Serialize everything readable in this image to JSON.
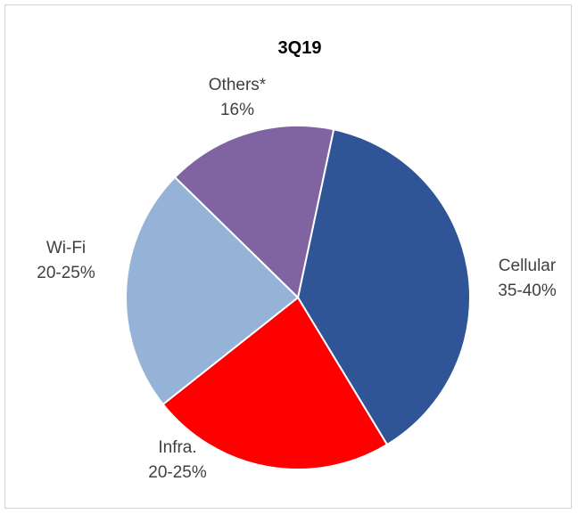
{
  "chart_data": {
    "type": "pie",
    "title": "3Q19",
    "slices": [
      {
        "label": "Cellular",
        "value_text": "35-40%",
        "value": 38,
        "color": "#2F5597"
      },
      {
        "label": "Infra.",
        "value_text": "20-25%",
        "value": 23,
        "color": "#FF0000"
      },
      {
        "label": "Wi-Fi",
        "value_text": "20-25%",
        "value": 23,
        "color": "#95B3D7"
      },
      {
        "label": "Others*",
        "value_text": "16%",
        "value": 16,
        "color": "#8064A2"
      }
    ]
  }
}
